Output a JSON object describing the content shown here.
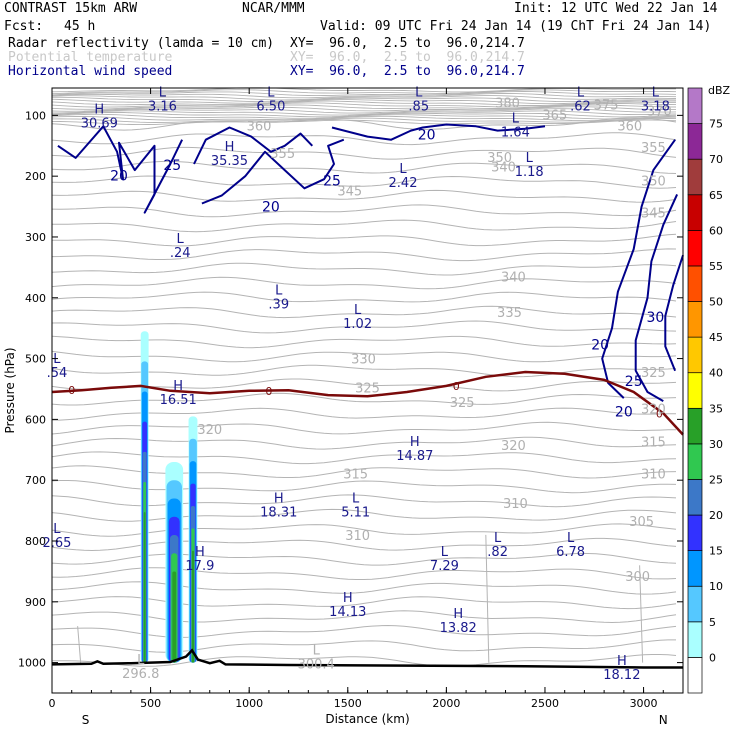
{
  "header": {
    "model": "CONTRAST 15km ARW",
    "center": "NCAR/MMM",
    "init": "Init: 12 UTC Wed 22 Jan 14",
    "fcst_label": "Fcst:",
    "fcst_value": "45 h",
    "valid": "Valid: 09 UTC Fri 24 Jan 14 (19 ChT Fri 24 Jan 14)",
    "fields": [
      {
        "name": "Radar reflectivity (lamda = 10 cm)",
        "xy": "XY=  96.0,  2.5 to  96.0,214.7",
        "color": "#000000"
      },
      {
        "name": "Potential temperature",
        "xy": "XY=  96.0,  2.5 to  96.0,214.7",
        "color": "#c8c8c8"
      },
      {
        "name": "Horizontal wind speed",
        "xy": "XY=  96.0,  2.5 to  96.0,214.7",
        "color": "#00008b"
      }
    ]
  },
  "chart_data": {
    "type": "cross-section",
    "xlabel": "Distance (km)",
    "ylabel": "Pressure (hPa)",
    "xlim": [
      0,
      3200
    ],
    "ylim": [
      1050,
      55
    ],
    "x_ticks": [
      0,
      500,
      1000,
      1500,
      2000,
      2500,
      3000
    ],
    "x_tick_labels": [
      "0",
      "500",
      "1000",
      "1500",
      "2000",
      "2500",
      "3000"
    ],
    "y_ticks": [
      100,
      200,
      300,
      400,
      500,
      600,
      700,
      800,
      900,
      1000
    ],
    "y_tick_labels": [
      "100",
      "200",
      "300",
      "400",
      "500",
      "600",
      "700",
      "800",
      "900",
      "1000"
    ],
    "end_labels": {
      "left": "S",
      "right": "N"
    },
    "colorbar": {
      "units": "dBZ",
      "levels": [
        "0",
        "5",
        "10",
        "15",
        "20",
        "25",
        "30",
        "35",
        "40",
        "45",
        "50",
        "55",
        "60",
        "65",
        "70",
        "75"
      ],
      "colors": [
        "#ffffff",
        "#aaffff",
        "#55c8ff",
        "#0096ff",
        "#3232ff",
        "#3c78c8",
        "#30c850",
        "#28a028",
        "#ffff00",
        "#ffc800",
        "#ff9600",
        "#ff5000",
        "#ff0000",
        "#c80000",
        "#a03c3c",
        "#8c2896",
        "#b478c8"
      ]
    },
    "theta_labels": [
      {
        "t": "360",
        "x": 1050,
        "p": 125
      },
      {
        "t": "355",
        "x": 1170,
        "p": 170
      },
      {
        "t": "350",
        "x": 2270,
        "p": 177
      },
      {
        "t": "345",
        "x": 1510,
        "p": 232
      },
      {
        "t": "340",
        "x": 2290,
        "p": 192
      },
      {
        "t": "340",
        "x": 2340,
        "p": 373
      },
      {
        "t": "335",
        "x": 2320,
        "p": 432
      },
      {
        "t": "330",
        "x": 1580,
        "p": 508
      },
      {
        "t": "325",
        "x": 1600,
        "p": 556
      },
      {
        "t": "325",
        "x": 2080,
        "p": 580
      },
      {
        "t": "320",
        "x": 800,
        "p": 624
      },
      {
        "t": "320",
        "x": 2340,
        "p": 650
      },
      {
        "t": "315",
        "x": 1540,
        "p": 697
      },
      {
        "t": "310",
        "x": 2350,
        "p": 746
      },
      {
        "t": "310",
        "x": 1550,
        "p": 798
      },
      {
        "t": "305",
        "x": 2990,
        "p": 775
      },
      {
        "t": "300",
        "x": 2970,
        "p": 866
      },
      {
        "t": "315",
        "x": 3050,
        "p": 645
      },
      {
        "t": "310",
        "x": 3050,
        "p": 697
      },
      {
        "t": "320",
        "x": 3050,
        "p": 590
      },
      {
        "t": "325",
        "x": 3050,
        "p": 530
      },
      {
        "t": "345",
        "x": 3050,
        "p": 268
      },
      {
        "t": "350",
        "x": 3050,
        "p": 215
      },
      {
        "t": "355",
        "x": 3050,
        "p": 160
      },
      {
        "t": "360",
        "x": 2930,
        "p": 125
      },
      {
        "t": "365",
        "x": 2550,
        "p": 107
      },
      {
        "t": "370",
        "x": 3080,
        "p": 100
      },
      {
        "t": "375",
        "x": 2810,
        "p": 90
      },
      {
        "t": "380",
        "x": 2310,
        "p": 87
      }
    ],
    "wind_labels": [
      {
        "t": "20",
        "x": 340,
        "p": 207
      },
      {
        "t": "25",
        "x": 610,
        "p": 190
      },
      {
        "t": "20",
        "x": 1110,
        "p": 258
      },
      {
        "t": "25",
        "x": 1420,
        "p": 215
      },
      {
        "t": "20",
        "x": 1900,
        "p": 140
      },
      {
        "t": "20",
        "x": 2780,
        "p": 485
      },
      {
        "t": "25",
        "x": 2950,
        "p": 545
      },
      {
        "t": "20",
        "x": 2900,
        "p": 595
      },
      {
        "t": "30",
        "x": 3060,
        "p": 440
      }
    ],
    "hl_labels": [
      {
        "l": "L",
        "v": "3.16",
        "x": 560,
        "p": 92
      },
      {
        "l": "L",
        "v": "6.50",
        "x": 1110,
        "p": 92
      },
      {
        "l": "L",
        "v": ".85",
        "x": 1860,
        "p": 92
      },
      {
        "l": "L",
        "v": ".62",
        "x": 2680,
        "p": 92
      },
      {
        "l": "L",
        "v": "3.18",
        "x": 3060,
        "p": 92
      },
      {
        "l": "H",
        "v": "30.69",
        "x": 240,
        "p": 120
      },
      {
        "l": "L",
        "v": "1.64",
        "x": 2350,
        "p": 135
      },
      {
        "l": "H",
        "v": "35.35",
        "x": 900,
        "p": 182
      },
      {
        "l": "L",
        "v": "2.42",
        "x": 1780,
        "p": 218
      },
      {
        "l": "L",
        "v": "1.18",
        "x": 2420,
        "p": 200
      },
      {
        "l": "L",
        "v": ".24",
        "x": 650,
        "p": 333
      },
      {
        "l": "L",
        "v": ".39",
        "x": 1150,
        "p": 418
      },
      {
        "l": "L",
        "v": "1.02",
        "x": 1550,
        "p": 450
      },
      {
        "l": "L",
        "v": ".54",
        "x": 25,
        "p": 530
      },
      {
        "l": "H",
        "v": "16.51",
        "x": 640,
        "p": 575
      },
      {
        "l": "H",
        "v": "14.87",
        "x": 1840,
        "p": 667
      },
      {
        "l": "H",
        "v": "18.31",
        "x": 1150,
        "p": 760
      },
      {
        "l": "L",
        "v": "5.11",
        "x": 1540,
        "p": 760
      },
      {
        "l": "L",
        "v": "2.65",
        "x": 25,
        "p": 810
      },
      {
        "l": "H",
        "v": "17.9",
        "x": 750,
        "p": 848
      },
      {
        "l": "L",
        "v": "7.29",
        "x": 1990,
        "p": 848
      },
      {
        "l": "L",
        "v": ".82",
        "x": 2260,
        "p": 825
      },
      {
        "l": "L",
        "v": "6.78",
        "x": 2630,
        "p": 825
      },
      {
        "l": "H",
        "v": "14.13",
        "x": 1500,
        "p": 923
      },
      {
        "l": "H",
        "v": "13.82",
        "x": 2060,
        "p": 950
      },
      {
        "l": "L",
        "v": "300.4",
        "x": 1340,
        "p": 1010
      },
      {
        "l": "L",
        "v": "296.8",
        "x": 450,
        "p": 1025
      },
      {
        "l": "H",
        "v": "18.12",
        "x": 2890,
        "p": 1027
      }
    ],
    "freezing_level_label": "0"
  }
}
